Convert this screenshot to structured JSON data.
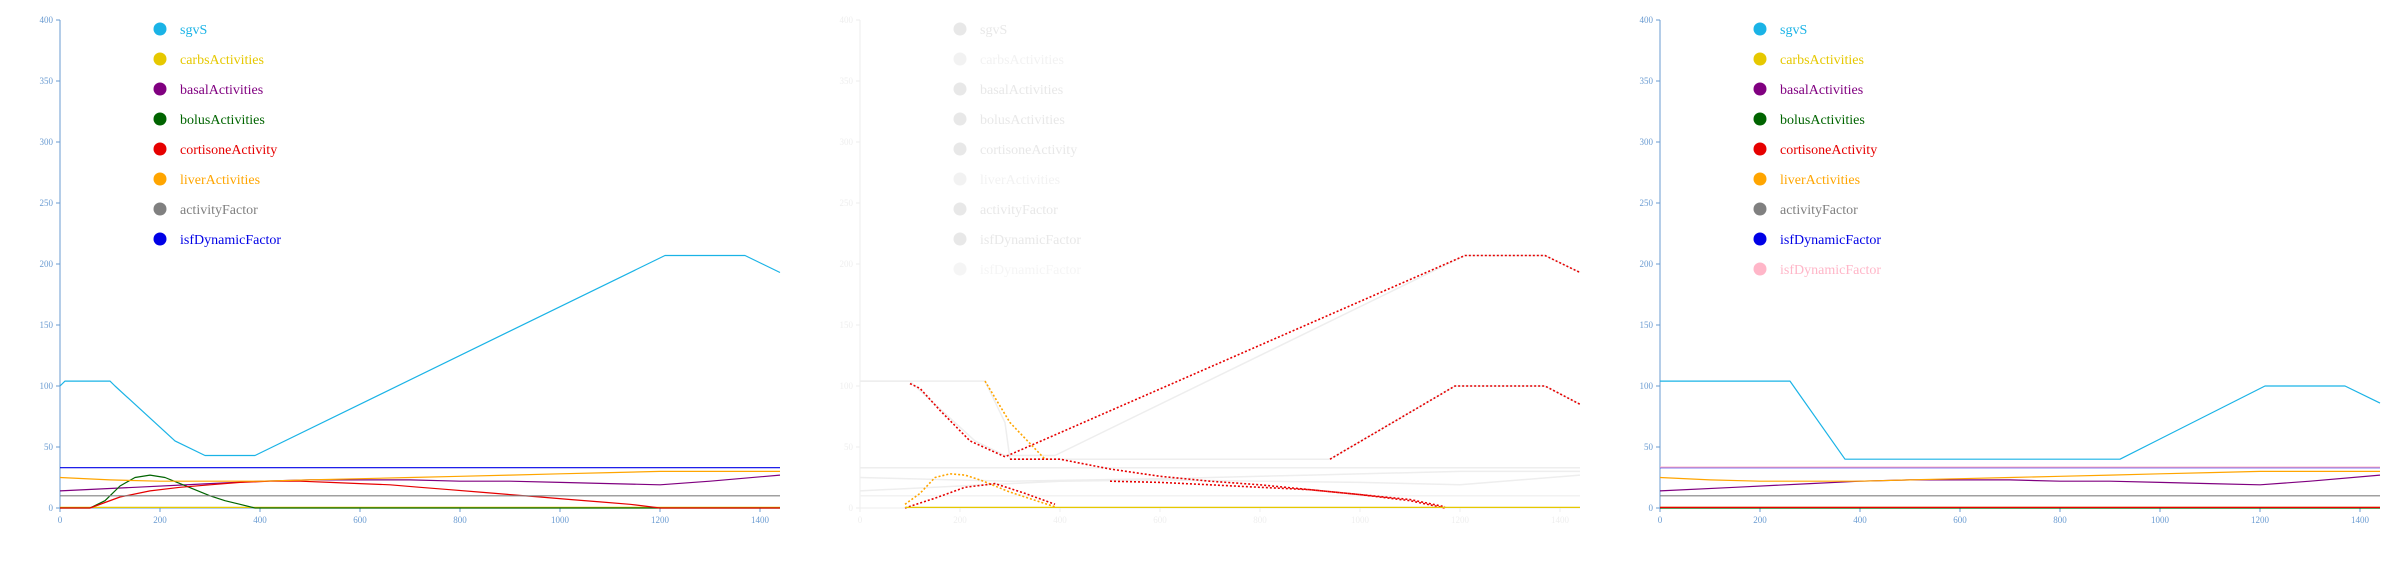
{
  "chart_data": [
    {
      "type": "line",
      "x_ticks": [
        0,
        200,
        400,
        600,
        800,
        1000,
        1200,
        1400
      ],
      "y_ticks": [
        0,
        50,
        100,
        150,
        200,
        250,
        300,
        350,
        400
      ],
      "xlim": [
        0,
        1440
      ],
      "ylim": [
        0,
        400
      ],
      "axis_color": "#6a9bd1",
      "legend": [
        {
          "label": "sgvS",
          "color": "#1ab3e6"
        },
        {
          "label": "carbsActivities",
          "color": "#e6c800"
        },
        {
          "label": "basalActivities",
          "color": "#800080"
        },
        {
          "label": "bolusActivities",
          "color": "#006400"
        },
        {
          "label": "cortisoneActivity",
          "color": "#e60000"
        },
        {
          "label": "liverActivities",
          "color": "#ffa500"
        },
        {
          "label": "activityFactor",
          "color": "#808080"
        },
        {
          "label": "isfDynamicFactor",
          "color": "#0000e6"
        }
      ],
      "series": [
        {
          "name": "sgvS",
          "color": "#1ab3e6",
          "x": [
            0,
            10,
            100,
            110,
            230,
            290,
            390,
            1210,
            1370,
            1440
          ],
          "y": [
            100,
            104,
            104,
            100,
            55,
            43,
            43,
            207,
            207,
            193
          ]
        },
        {
          "name": "carbsActivities",
          "color": "#e6c800",
          "x": [
            0,
            1440
          ],
          "y": [
            0.5,
            0.5
          ]
        },
        {
          "name": "basalActivities",
          "color": "#800080",
          "x": [
            0,
            150,
            300,
            400,
            500,
            600,
            700,
            800,
            900,
            1000,
            1100,
            1200,
            1300,
            1440
          ],
          "y": [
            14,
            17,
            20,
            22,
            23,
            23,
            23,
            22,
            22,
            21,
            20,
            19,
            22,
            27
          ]
        },
        {
          "name": "bolusActivities",
          "color": "#006400",
          "x": [
            0,
            60,
            90,
            120,
            150,
            180,
            210,
            240,
            270,
            300,
            330,
            360,
            390,
            1440
          ],
          "y": [
            0,
            0,
            6,
            18,
            25,
            27,
            25,
            20,
            15,
            10,
            6,
            3,
            0,
            0
          ]
        },
        {
          "name": "cortisoneActivity",
          "color": "#e60000",
          "x": [
            0,
            60,
            120,
            180,
            240,
            300,
            360,
            420,
            480,
            540,
            600,
            660,
            720,
            780,
            840,
            900,
            960,
            1020,
            1080,
            1140,
            1200,
            1440
          ],
          "y": [
            0,
            0,
            9,
            14,
            17,
            19,
            21,
            22,
            22,
            21,
            20,
            19,
            17,
            15,
            13,
            11,
            9,
            7,
            5,
            3,
            0,
            0
          ]
        },
        {
          "name": "liverActivities",
          "color": "#ffa500",
          "x": [
            0,
            100,
            200,
            300,
            400,
            500,
            600,
            700,
            800,
            900,
            1000,
            1100,
            1200,
            1300,
            1440
          ],
          "y": [
            25,
            23,
            22,
            22,
            22,
            23,
            24,
            25,
            26,
            27,
            28,
            29,
            30,
            30,
            30
          ]
        },
        {
          "name": "activityFactor",
          "color": "#808080",
          "x": [
            0,
            1440
          ],
          "y": [
            10,
            10
          ]
        },
        {
          "name": "isfDynamicFactor",
          "color": "#0000e6",
          "x": [
            0,
            1440
          ],
          "y": [
            33,
            33
          ]
        }
      ]
    },
    {
      "type": "line",
      "x_ticks": [
        0,
        200,
        400,
        600,
        800,
        1000,
        1200,
        1400
      ],
      "y_ticks": [
        0,
        50,
        100,
        150,
        200,
        250,
        300,
        350,
        400
      ],
      "xlim": [
        0,
        1440
      ],
      "ylim": [
        0,
        400
      ],
      "faded": true,
      "axis_color": "#eeeeee",
      "legend": [
        {
          "label": "sgvS",
          "color": "#e8e8e8"
        },
        {
          "label": "carbsActivities",
          "color": "#f2f2f2"
        },
        {
          "label": "basalActivities",
          "color": "#e8e8e8"
        },
        {
          "label": "bolusActivities",
          "color": "#e8e8e8"
        },
        {
          "label": "cortisoneActivity",
          "color": "#e8e8e8"
        },
        {
          "label": "liverActivities",
          "color": "#f2f2f2"
        },
        {
          "label": "activityFactor",
          "color": "#e8e8e8"
        },
        {
          "label": "isfDynamicFactor",
          "color": "#e8e8e8"
        },
        {
          "label": "isfDynamicFactor",
          "color": "#f5f5f5"
        }
      ],
      "series": [
        {
          "name": "sgvS",
          "color": "#eeeeee",
          "width": 1.5,
          "x": [
            0,
            100,
            110,
            230,
            290,
            390,
            1210,
            1370,
            1440
          ],
          "y": [
            104,
            104,
            100,
            55,
            43,
            43,
            207,
            207,
            193
          ]
        },
        {
          "name": "sgvS",
          "color": "#eeeeee",
          "width": 1.5,
          "x": [
            0,
            250,
            290,
            300,
            940,
            1190,
            1370,
            1440
          ],
          "y": [
            104,
            104,
            70,
            40,
            40,
            100,
            100,
            85
          ]
        },
        {
          "name": "basalActivities",
          "color": "#eeeeee",
          "width": 1.5,
          "x": [
            0,
            200,
            400,
            600,
            800,
            1000,
            1200,
            1440
          ],
          "y": [
            14,
            18,
            22,
            23,
            22,
            21,
            19,
            27
          ]
        },
        {
          "name": "liverActivities",
          "color": "#eeeeee",
          "width": 1.5,
          "x": [
            0,
            300,
            600,
            900,
            1200,
            1440
          ],
          "y": [
            25,
            22,
            24,
            27,
            30,
            30
          ]
        },
        {
          "name": "isfDynamicFactor",
          "color": "#eeeeee",
          "width": 1.5,
          "x": [
            0,
            1440
          ],
          "y": [
            33,
            33
          ]
        },
        {
          "name": "activityFactor",
          "color": "#f2f2f2",
          "width": 1.5,
          "x": [
            0,
            1440
          ],
          "y": [
            10,
            10
          ]
        },
        {
          "name": "cortisoneActivity",
          "color": "#e60000",
          "width": 1.6,
          "dash": "2 2",
          "x": [
            100,
            120,
            160,
            220,
            290,
            1210,
            1370,
            1440
          ],
          "y": [
            102,
            98,
            80,
            55,
            42,
            207,
            207,
            193
          ]
        },
        {
          "name": "sgvS",
          "color": "#ffa500",
          "width": 1.6,
          "dash": "2 2",
          "x": [
            250,
            300,
            370,
            380
          ],
          "y": [
            104,
            70,
            40,
            40
          ]
        },
        {
          "name": "cortisoneActivity",
          "color": "#e60000",
          "width": 1.6,
          "dash": "2 2",
          "x": [
            300,
            400,
            500,
            600,
            700,
            800,
            900,
            1000,
            1100,
            1170
          ],
          "y": [
            40,
            40,
            32,
            26,
            22,
            19,
            15,
            11,
            6,
            0
          ]
        },
        {
          "name": "bolusActivities",
          "color": "#ffa500",
          "width": 1.6,
          "dash": "2 2",
          "x": [
            90,
            120,
            150,
            180,
            210,
            240,
            270,
            300,
            330,
            360,
            390
          ],
          "y": [
            3,
            12,
            25,
            28,
            27,
            23,
            18,
            13,
            9,
            5,
            1
          ]
        },
        {
          "name": "bolusActivities",
          "color": "#e60000",
          "width": 1.6,
          "dash": "2 2",
          "x": [
            90,
            150,
            210,
            270,
            330,
            390
          ],
          "y": [
            0,
            8,
            17,
            20,
            12,
            3
          ]
        },
        {
          "name": "cortisoneActivity",
          "color": "#e60000",
          "width": 1.6,
          "dash": "2 2",
          "x": [
            500,
            600,
            700,
            800,
            900,
            1000,
            1100,
            1170
          ],
          "y": [
            22,
            21,
            19,
            17,
            15,
            11,
            7,
            1
          ]
        },
        {
          "name": "sgvS",
          "color": "#e60000",
          "width": 1.6,
          "dash": "2 2",
          "x": [
            940,
            1190,
            1370,
            1440
          ],
          "y": [
            40,
            100,
            100,
            85
          ]
        },
        {
          "name": "carbsActivities",
          "color": "#e6c800",
          "width": 1.3,
          "x": [
            90,
            1440
          ],
          "y": [
            0.5,
            0.5
          ]
        }
      ]
    },
    {
      "type": "line",
      "x_ticks": [
        0,
        200,
        400,
        600,
        800,
        1000,
        1200,
        1400
      ],
      "y_ticks": [
        0,
        50,
        100,
        150,
        200,
        250,
        300,
        350,
        400
      ],
      "xlim": [
        0,
        1440
      ],
      "ylim": [
        0,
        400
      ],
      "axis_color": "#6a9bd1",
      "legend": [
        {
          "label": "sgvS",
          "color": "#1ab3e6"
        },
        {
          "label": "carbsActivities",
          "color": "#e6c800"
        },
        {
          "label": "basalActivities",
          "color": "#800080"
        },
        {
          "label": "bolusActivities",
          "color": "#006400"
        },
        {
          "label": "cortisoneActivity",
          "color": "#e60000"
        },
        {
          "label": "liverActivities",
          "color": "#ffa500"
        },
        {
          "label": "activityFactor",
          "color": "#808080"
        },
        {
          "label": "isfDynamicFactor",
          "color": "#0000e6"
        },
        {
          "label": "isfDynamicFactor",
          "color": "#ffb6c8"
        }
      ],
      "series": [
        {
          "name": "sgvS",
          "color": "#1ab3e6",
          "x": [
            0,
            260,
            370,
            920,
            1210,
            1370,
            1440
          ],
          "y": [
            104,
            104,
            40,
            40,
            100,
            100,
            86
          ]
        },
        {
          "name": "carbsActivities",
          "color": "#e6c800",
          "x": [
            0,
            1440
          ],
          "y": [
            0.5,
            0.5
          ]
        },
        {
          "name": "basalActivities",
          "color": "#800080",
          "x": [
            0,
            150,
            300,
            400,
            500,
            600,
            700,
            800,
            900,
            1000,
            1100,
            1200,
            1300,
            1440
          ],
          "y": [
            14,
            17,
            20,
            22,
            23,
            23,
            23,
            22,
            22,
            21,
            20,
            19,
            22,
            27
          ]
        },
        {
          "name": "bolusActivities",
          "color": "#006400",
          "x": [
            0,
            1440
          ],
          "y": [
            0,
            0
          ]
        },
        {
          "name": "cortisoneActivity",
          "color": "#e60000",
          "x": [
            0,
            1440
          ],
          "y": [
            0.5,
            0.5
          ]
        },
        {
          "name": "liverActivities",
          "color": "#ffa500",
          "x": [
            0,
            100,
            200,
            300,
            400,
            500,
            600,
            700,
            800,
            900,
            1000,
            1100,
            1200,
            1300,
            1440
          ],
          "y": [
            25,
            23,
            22,
            22,
            22,
            23,
            24,
            25,
            26,
            27,
            28,
            29,
            30,
            30,
            30
          ]
        },
        {
          "name": "activityFactor",
          "color": "#808080",
          "x": [
            0,
            1440
          ],
          "y": [
            10,
            10
          ]
        },
        {
          "name": "isfDynamicFactor",
          "color": "#0000e6",
          "x": [
            0,
            1440
          ],
          "y": [
            33,
            33
          ]
        },
        {
          "name": "isfDynamicFactor",
          "color": "#ffb6c8",
          "x": [
            0,
            1440
          ],
          "y": [
            33.5,
            33.5
          ]
        }
      ]
    }
  ]
}
